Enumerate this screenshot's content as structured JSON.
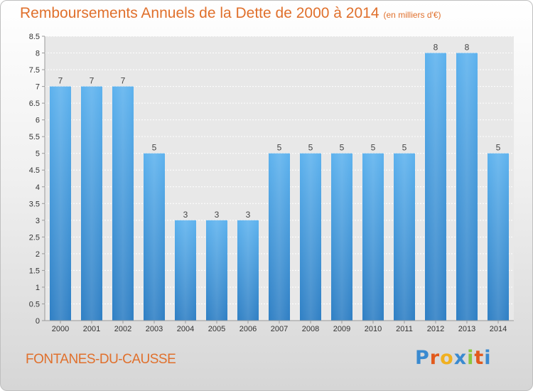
{
  "chart_data": {
    "type": "bar",
    "title": "Remboursements Annuels de la Dette de 2000 à 2014",
    "subtitle": "(en milliers d'€)",
    "xlabel": "",
    "ylabel": "",
    "categories": [
      "2000",
      "2001",
      "2002",
      "2003",
      "2004",
      "2005",
      "2006",
      "2007",
      "2008",
      "2009",
      "2010",
      "2011",
      "2012",
      "2013",
      "2014"
    ],
    "values": [
      7,
      7,
      7,
      5,
      3,
      3,
      3,
      5,
      5,
      5,
      5,
      5,
      8,
      8,
      5
    ],
    "data_labels": [
      "7",
      "7",
      "7",
      "5",
      "3",
      "3",
      "3",
      "5",
      "5",
      "5",
      "5",
      "5",
      "8",
      "8",
      "5"
    ],
    "ylim": [
      0,
      8.5
    ],
    "yticks": [
      "0",
      "0.5",
      "1",
      "1.5",
      "2",
      "2.5",
      "3",
      "3.5",
      "4",
      "4.5",
      "5",
      "5.5",
      "6",
      "6.5",
      "7",
      "7.5",
      "8",
      "8.5"
    ],
    "grid": true,
    "legend": "none",
    "bar_color": "#4da6e8"
  },
  "footer": {
    "commune": "FONTANES-DU-CAUSSE",
    "logo_letters": [
      "P",
      "r",
      "o",
      "x",
      "i",
      "t",
      "i"
    ],
    "logo_colors": [
      "#3a8ad0",
      "#e25a1c",
      "#f0b020",
      "#3a8ad0",
      "#8cc63e",
      "#e25a1c",
      "#3a8ad0"
    ]
  }
}
